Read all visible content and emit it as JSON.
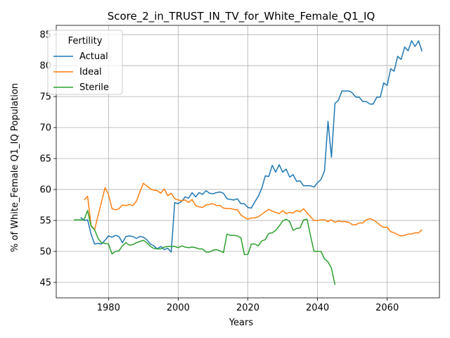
{
  "chart_data": {
    "type": "line",
    "title": "Score_2_in_TRUST_IN_TV_for_White_Female_Q1_IQ",
    "xlabel": "Years",
    "ylabel": "% of White_Female Q1_IQ Population",
    "xlim": [
      1965,
      2075
    ],
    "ylim": [
      42.5,
      86.5
    ],
    "xticks": [
      1980,
      2000,
      2020,
      2040,
      2060
    ],
    "yticks": [
      45,
      50,
      55,
      60,
      65,
      70,
      75,
      80,
      85
    ],
    "grid": true,
    "legend": {
      "title": "Fertility",
      "position": "top-left"
    },
    "series": [
      {
        "name": "Actual",
        "color": "#1f77b4",
        "points": [
          [
            1972,
            55.5
          ],
          [
            1973,
            55.0
          ],
          [
            1974,
            55.1
          ],
          [
            1975,
            52.8
          ],
          [
            1976,
            51.2
          ],
          [
            1977,
            51.3
          ],
          [
            1978,
            51.2
          ],
          [
            1979,
            51.8
          ],
          [
            1980,
            52.5
          ],
          [
            1981,
            52.3
          ],
          [
            1982,
            52.6
          ],
          [
            1983,
            52.4
          ],
          [
            1984,
            51.4
          ],
          [
            1985,
            52.4
          ],
          [
            1986,
            52.5
          ],
          [
            1987,
            52.4
          ],
          [
            1988,
            52.1
          ],
          [
            1989,
            52.4
          ],
          [
            1990,
            52.3
          ],
          [
            1991,
            51.9
          ],
          [
            1992,
            51.2
          ],
          [
            1993,
            50.9
          ],
          [
            1994,
            50.4
          ],
          [
            1995,
            50.8
          ],
          [
            1996,
            50.3
          ],
          [
            1997,
            50.5
          ],
          [
            1998,
            49.9
          ],
          [
            1999,
            57.9
          ],
          [
            2000,
            57.7
          ],
          [
            2001,
            58.1
          ],
          [
            2002,
            58.8
          ],
          [
            2003,
            58.6
          ],
          [
            2004,
            59.5
          ],
          [
            2005,
            58.8
          ],
          [
            2006,
            59.5
          ],
          [
            2007,
            59.2
          ],
          [
            2008,
            59.8
          ],
          [
            2009,
            59.4
          ],
          [
            2010,
            59.3
          ],
          [
            2011,
            59.5
          ],
          [
            2012,
            59.6
          ],
          [
            2013,
            59.4
          ],
          [
            2014,
            58.5
          ],
          [
            2015,
            58.4
          ],
          [
            2016,
            58.3
          ],
          [
            2017,
            58.5
          ],
          [
            2018,
            57.7
          ],
          [
            2019,
            57.7
          ],
          [
            2020,
            57.1
          ],
          [
            2021,
            57.0
          ],
          [
            2022,
            58.0
          ],
          [
            2023,
            58.9
          ],
          [
            2024,
            60.2
          ],
          [
            2025,
            62.2
          ],
          [
            2026,
            62.1
          ],
          [
            2027,
            63.9
          ],
          [
            2028,
            62.8
          ],
          [
            2029,
            64.0
          ],
          [
            2030,
            62.8
          ],
          [
            2031,
            63.3
          ],
          [
            2032,
            62.0
          ],
          [
            2033,
            62.4
          ],
          [
            2034,
            61.3
          ],
          [
            2035,
            61.4
          ],
          [
            2036,
            60.6
          ],
          [
            2037,
            60.6
          ],
          [
            2038,
            60.6
          ],
          [
            2039,
            60.4
          ],
          [
            2040,
            61.1
          ],
          [
            2041,
            61.6
          ],
          [
            2042,
            63.0
          ],
          [
            2043,
            71.0
          ],
          [
            2044,
            65.2
          ],
          [
            2045,
            73.9
          ],
          [
            2046,
            74.4
          ],
          [
            2047,
            75.9
          ],
          [
            2048,
            75.9
          ],
          [
            2049,
            75.9
          ],
          [
            2050,
            75.6
          ],
          [
            2051,
            74.9
          ],
          [
            2052,
            74.9
          ],
          [
            2053,
            74.2
          ],
          [
            2054,
            74.2
          ],
          [
            2055,
            73.8
          ],
          [
            2056,
            73.8
          ],
          [
            2057,
            74.9
          ],
          [
            2058,
            74.9
          ],
          [
            2059,
            77.2
          ],
          [
            2060,
            76.8
          ],
          [
            2061,
            79.5
          ],
          [
            2062,
            79.1
          ],
          [
            2063,
            81.5
          ],
          [
            2064,
            81.0
          ],
          [
            2065,
            83.0
          ],
          [
            2066,
            82.4
          ],
          [
            2067,
            84.0
          ],
          [
            2068,
            83.1
          ],
          [
            2069,
            84.0
          ],
          [
            2070,
            82.3
          ]
        ]
      },
      {
        "name": "Ideal",
        "color": "#ff7f0e",
        "points": [
          [
            1973,
            58.3
          ],
          [
            1974,
            58.9
          ],
          [
            1975,
            54.2
          ],
          [
            1976,
            53.5
          ],
          [
            1977,
            55.8
          ],
          [
            1978,
            58.0
          ],
          [
            1979,
            60.3
          ],
          [
            1980,
            59.2
          ],
          [
            1981,
            56.9
          ],
          [
            1982,
            56.7
          ],
          [
            1983,
            56.9
          ],
          [
            1984,
            57.5
          ],
          [
            1985,
            57.4
          ],
          [
            1986,
            57.6
          ],
          [
            1987,
            57.4
          ],
          [
            1988,
            58.1
          ],
          [
            1989,
            59.6
          ],
          [
            1990,
            61.0
          ],
          [
            1991,
            60.6
          ],
          [
            1992,
            60.1
          ],
          [
            1993,
            59.9
          ],
          [
            1994,
            59.8
          ],
          [
            1995,
            59.4
          ],
          [
            1996,
            60.1
          ],
          [
            1997,
            59.0
          ],
          [
            1998,
            59.4
          ],
          [
            1999,
            58.5
          ],
          [
            2000,
            58.3
          ],
          [
            2001,
            58.2
          ],
          [
            2002,
            58.3
          ],
          [
            2003,
            57.9
          ],
          [
            2004,
            58.4
          ],
          [
            2005,
            57.4
          ],
          [
            2006,
            57.2
          ],
          [
            2007,
            57.1
          ],
          [
            2008,
            57.5
          ],
          [
            2009,
            57.6
          ],
          [
            2010,
            57.7
          ],
          [
            2011,
            57.4
          ],
          [
            2012,
            57.4
          ],
          [
            2013,
            57.0
          ],
          [
            2014,
            56.9
          ],
          [
            2015,
            56.9
          ],
          [
            2016,
            56.8
          ],
          [
            2017,
            56.7
          ],
          [
            2018,
            55.9
          ],
          [
            2019,
            55.5
          ],
          [
            2020,
            55.2
          ],
          [
            2021,
            55.4
          ],
          [
            2022,
            55.4
          ],
          [
            2023,
            55.6
          ],
          [
            2024,
            56.0
          ],
          [
            2025,
            56.4
          ],
          [
            2026,
            56.8
          ],
          [
            2027,
            56.5
          ],
          [
            2028,
            56.3
          ],
          [
            2029,
            56.1
          ],
          [
            2030,
            56.6
          ],
          [
            2031,
            56.1
          ],
          [
            2032,
            56.3
          ],
          [
            2033,
            56.2
          ],
          [
            2034,
            56.6
          ],
          [
            2035,
            56.4
          ],
          [
            2036,
            56.9
          ],
          [
            2037,
            56.2
          ],
          [
            2038,
            55.6
          ],
          [
            2039,
            55.0
          ],
          [
            2040,
            55.0
          ],
          [
            2041,
            55.1
          ],
          [
            2042,
            55.1
          ],
          [
            2043,
            54.8
          ],
          [
            2044,
            55.1
          ],
          [
            2045,
            54.7
          ],
          [
            2046,
            54.9
          ],
          [
            2047,
            54.8
          ],
          [
            2048,
            54.8
          ],
          [
            2049,
            54.7
          ],
          [
            2050,
            54.3
          ],
          [
            2051,
            54.3
          ],
          [
            2052,
            54.6
          ],
          [
            2053,
            54.6
          ],
          [
            2054,
            55.1
          ],
          [
            2055,
            55.3
          ],
          [
            2056,
            55.1
          ],
          [
            2057,
            54.7
          ],
          [
            2058,
            54.2
          ],
          [
            2059,
            53.9
          ],
          [
            2060,
            53.9
          ],
          [
            2061,
            53.2
          ],
          [
            2062,
            53.0
          ],
          [
            2063,
            52.7
          ],
          [
            2064,
            52.5
          ],
          [
            2065,
            52.6
          ],
          [
            2066,
            52.8
          ],
          [
            2067,
            52.8
          ],
          [
            2068,
            53.0
          ],
          [
            2069,
            53.0
          ],
          [
            2070,
            53.5
          ]
        ]
      },
      {
        "name": "Sterile",
        "color": "#2ca02c",
        "points": [
          [
            1970,
            55.1
          ],
          [
            1971,
            55.1
          ],
          [
            1972,
            55.1
          ],
          [
            1973,
            55.1
          ],
          [
            1974,
            56.6
          ],
          [
            1975,
            54.1
          ],
          [
            1976,
            53.5
          ],
          [
            1977,
            52.1
          ],
          [
            1978,
            51.4
          ],
          [
            1979,
            51.3
          ],
          [
            1980,
            51.2
          ],
          [
            1981,
            49.6
          ],
          [
            1982,
            50.0
          ],
          [
            1983,
            50.1
          ],
          [
            1984,
            50.9
          ],
          [
            1985,
            51.4
          ],
          [
            1986,
            51.0
          ],
          [
            1987,
            51.1
          ],
          [
            1988,
            51.4
          ],
          [
            1989,
            51.6
          ],
          [
            1990,
            51.8
          ],
          [
            1991,
            51.4
          ],
          [
            1992,
            50.8
          ],
          [
            1993,
            50.5
          ],
          [
            1994,
            50.4
          ],
          [
            1995,
            50.4
          ],
          [
            1996,
            50.7
          ],
          [
            1997,
            50.8
          ],
          [
            1998,
            50.8
          ],
          [
            1999,
            50.8
          ],
          [
            2000,
            50.6
          ],
          [
            2001,
            50.9
          ],
          [
            2002,
            50.7
          ],
          [
            2003,
            50.6
          ],
          [
            2004,
            50.7
          ],
          [
            2005,
            50.6
          ],
          [
            2006,
            50.4
          ],
          [
            2007,
            50.4
          ],
          [
            2008,
            49.9
          ],
          [
            2009,
            49.9
          ],
          [
            2010,
            50.2
          ],
          [
            2011,
            50.3
          ],
          [
            2012,
            50.1
          ],
          [
            2013,
            49.8
          ],
          [
            2014,
            52.8
          ],
          [
            2015,
            52.6
          ],
          [
            2016,
            52.6
          ],
          [
            2017,
            52.5
          ],
          [
            2018,
            52.2
          ],
          [
            2019,
            49.5
          ],
          [
            2020,
            49.5
          ],
          [
            2021,
            51.2
          ],
          [
            2022,
            51.2
          ],
          [
            2023,
            50.9
          ],
          [
            2024,
            51.7
          ],
          [
            2025,
            51.9
          ],
          [
            2026,
            52.9
          ],
          [
            2027,
            53.0
          ],
          [
            2028,
            53.4
          ],
          [
            2029,
            54.1
          ],
          [
            2030,
            54.9
          ],
          [
            2031,
            55.2
          ],
          [
            2032,
            54.8
          ],
          [
            2033,
            53.4
          ],
          [
            2034,
            53.7
          ],
          [
            2035,
            53.8
          ],
          [
            2036,
            55.1
          ],
          [
            2037,
            55.2
          ],
          [
            2038,
            52.5
          ],
          [
            2039,
            50.0
          ],
          [
            2040,
            50.0
          ],
          [
            2041,
            50.0
          ],
          [
            2042,
            48.8
          ],
          [
            2043,
            48.3
          ],
          [
            2044,
            47.3
          ],
          [
            2045,
            44.6
          ]
        ]
      }
    ]
  }
}
